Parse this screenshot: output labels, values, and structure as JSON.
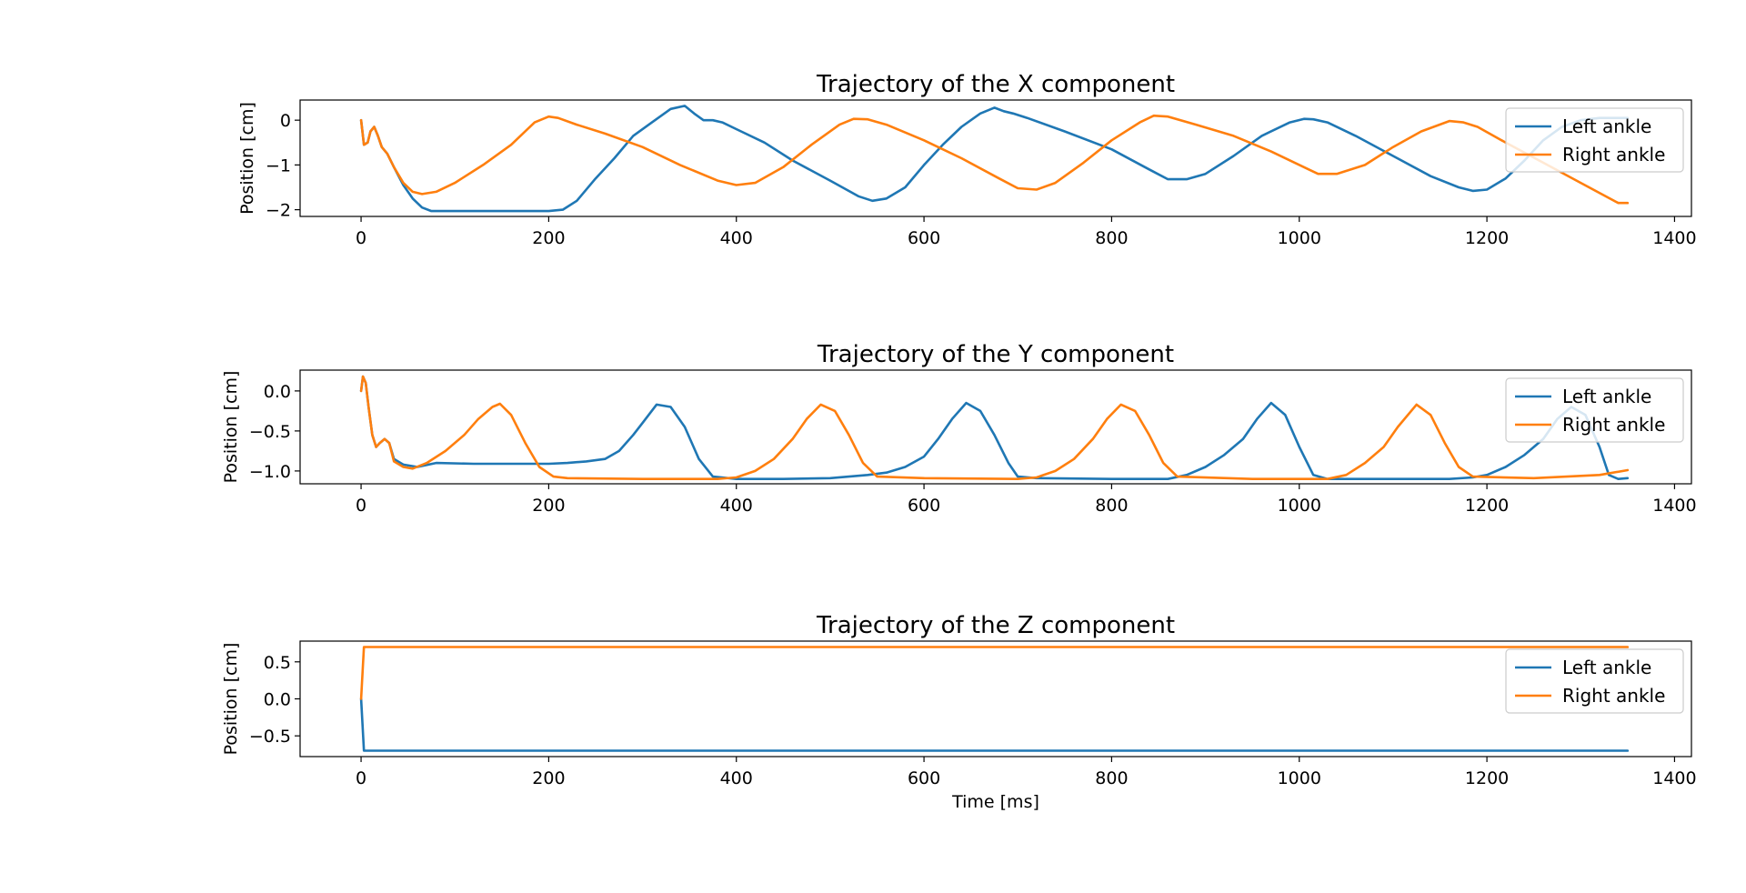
{
  "chart_data": [
    {
      "type": "line",
      "title": "Trajectory of the X component",
      "xlabel": "",
      "ylabel": "Position [cm]",
      "xlim": [
        -65,
        1418
      ],
      "ylim": [
        -2.15,
        0.45
      ],
      "xticks": [
        0,
        200,
        400,
        600,
        800,
        1000,
        1200,
        1400
      ],
      "yticks": [
        0,
        -1,
        -2
      ],
      "legend_position": "top-right",
      "series": [
        {
          "name": "Left ankle",
          "color": "#1f77b4",
          "x": [
            0,
            3,
            7,
            10,
            14,
            18,
            22,
            28,
            35,
            45,
            55,
            65,
            75,
            100,
            150,
            200,
            215,
            230,
            250,
            270,
            290,
            310,
            330,
            345,
            355,
            365,
            375,
            385,
            400,
            430,
            460,
            500,
            530,
            545,
            560,
            580,
            600,
            620,
            640,
            660,
            675,
            685,
            695,
            710,
            750,
            800,
            840,
            860,
            880,
            900,
            930,
            960,
            990,
            1005,
            1015,
            1030,
            1060,
            1100,
            1140,
            1170,
            1185,
            1200,
            1220,
            1240,
            1260,
            1280,
            1300,
            1320,
            1340,
            1350
          ],
          "y": [
            0,
            -0.55,
            -0.5,
            -0.25,
            -0.15,
            -0.35,
            -0.6,
            -0.75,
            -1.05,
            -1.45,
            -1.75,
            -1.95,
            -2.03,
            -2.03,
            -2.03,
            -2.03,
            -2.0,
            -1.8,
            -1.3,
            -0.85,
            -0.35,
            -0.05,
            0.25,
            0.32,
            0.15,
            0.0,
            0.0,
            -0.05,
            -0.2,
            -0.5,
            -0.9,
            -1.35,
            -1.7,
            -1.8,
            -1.75,
            -1.5,
            -1.0,
            -0.55,
            -0.15,
            0.15,
            0.28,
            0.2,
            0.15,
            0.05,
            -0.25,
            -0.65,
            -1.1,
            -1.32,
            -1.32,
            -1.2,
            -0.8,
            -0.35,
            -0.05,
            0.03,
            0.02,
            -0.05,
            -0.35,
            -0.8,
            -1.25,
            -1.5,
            -1.58,
            -1.55,
            -1.3,
            -0.9,
            -0.45,
            -0.15,
            0.0,
            0.05,
            0.05,
            0.05
          ]
        },
        {
          "name": "Right ankle",
          "color": "#ff7f0e",
          "x": [
            0,
            3,
            7,
            10,
            14,
            18,
            22,
            28,
            35,
            45,
            55,
            65,
            80,
            100,
            130,
            160,
            185,
            200,
            210,
            230,
            260,
            300,
            340,
            380,
            400,
            420,
            450,
            480,
            510,
            525,
            540,
            560,
            600,
            640,
            680,
            700,
            720,
            740,
            770,
            800,
            830,
            845,
            860,
            890,
            930,
            970,
            1010,
            1020,
            1040,
            1070,
            1100,
            1130,
            1160,
            1175,
            1190,
            1220,
            1260,
            1300,
            1340,
            1350
          ],
          "y": [
            0,
            -0.55,
            -0.5,
            -0.25,
            -0.15,
            -0.35,
            -0.6,
            -0.75,
            -1.05,
            -1.4,
            -1.6,
            -1.65,
            -1.6,
            -1.4,
            -1.0,
            -0.55,
            -0.05,
            0.08,
            0.05,
            -0.1,
            -0.3,
            -0.6,
            -1.0,
            -1.35,
            -1.45,
            -1.4,
            -1.05,
            -0.55,
            -0.1,
            0.03,
            0.02,
            -0.1,
            -0.45,
            -0.85,
            -1.3,
            -1.52,
            -1.55,
            -1.4,
            -0.95,
            -0.45,
            -0.05,
            0.1,
            0.08,
            -0.1,
            -0.35,
            -0.7,
            -1.1,
            -1.2,
            -1.2,
            -1.0,
            -0.6,
            -0.25,
            -0.02,
            -0.05,
            -0.15,
            -0.5,
            -0.95,
            -1.4,
            -1.85,
            -1.85
          ]
        }
      ]
    },
    {
      "type": "line",
      "title": "Trajectory of the Y component",
      "xlabel": "",
      "ylabel": "Position [cm]",
      "xlim": [
        -65,
        1418
      ],
      "ylim": [
        -1.16,
        0.26
      ],
      "xticks": [
        0,
        200,
        400,
        600,
        800,
        1000,
        1200,
        1400
      ],
      "yticks": [
        0.0,
        -0.5,
        -1.0
      ],
      "tick_label_format": "fixed1",
      "legend_position": "top-right",
      "series": [
        {
          "name": "Left ankle",
          "color": "#1f77b4",
          "x": [
            0,
            2,
            5,
            8,
            12,
            16,
            20,
            25,
            30,
            35,
            45,
            60,
            80,
            120,
            160,
            200,
            220,
            240,
            260,
            275,
            290,
            300,
            315,
            330,
            345,
            360,
            375,
            400,
            450,
            500,
            540,
            560,
            580,
            600,
            615,
            630,
            645,
            660,
            675,
            690,
            700,
            720,
            800,
            860,
            880,
            900,
            920,
            940,
            955,
            970,
            985,
            1000,
            1015,
            1030,
            1100,
            1160,
            1185,
            1200,
            1220,
            1240,
            1260,
            1275,
            1290,
            1305,
            1320,
            1330,
            1340,
            1350
          ],
          "y": [
            0,
            0.18,
            0.1,
            -0.2,
            -0.55,
            -0.7,
            -0.65,
            -0.6,
            -0.65,
            -0.85,
            -0.92,
            -0.95,
            -0.9,
            -0.91,
            -0.91,
            -0.91,
            -0.9,
            -0.88,
            -0.85,
            -0.75,
            -0.55,
            -0.4,
            -0.17,
            -0.2,
            -0.45,
            -0.85,
            -1.07,
            -1.1,
            -1.1,
            -1.09,
            -1.05,
            -1.02,
            -0.95,
            -0.82,
            -0.6,
            -0.35,
            -0.15,
            -0.25,
            -0.55,
            -0.9,
            -1.07,
            -1.09,
            -1.1,
            -1.1,
            -1.05,
            -0.95,
            -0.8,
            -0.6,
            -0.35,
            -0.15,
            -0.3,
            -0.7,
            -1.05,
            -1.1,
            -1.1,
            -1.1,
            -1.08,
            -1.05,
            -0.95,
            -0.8,
            -0.6,
            -0.35,
            -0.2,
            -0.3,
            -0.7,
            -1.05,
            -1.1,
            -1.09
          ]
        },
        {
          "name": "Right ankle",
          "color": "#ff7f0e",
          "x": [
            0,
            2,
            5,
            8,
            12,
            16,
            20,
            25,
            30,
            35,
            45,
            55,
            70,
            90,
            110,
            125,
            140,
            148,
            160,
            175,
            190,
            205,
            220,
            300,
            380,
            400,
            420,
            440,
            460,
            475,
            490,
            505,
            520,
            535,
            550,
            600,
            700,
            720,
            740,
            760,
            780,
            795,
            810,
            825,
            840,
            855,
            870,
            950,
            1030,
            1050,
            1070,
            1090,
            1105,
            1125,
            1140,
            1155,
            1170,
            1185,
            1250,
            1320,
            1350
          ],
          "y": [
            0,
            0.18,
            0.1,
            -0.2,
            -0.55,
            -0.7,
            -0.65,
            -0.6,
            -0.65,
            -0.88,
            -0.95,
            -0.97,
            -0.9,
            -0.75,
            -0.55,
            -0.35,
            -0.2,
            -0.16,
            -0.3,
            -0.65,
            -0.95,
            -1.07,
            -1.09,
            -1.1,
            -1.1,
            -1.08,
            -1.0,
            -0.85,
            -0.6,
            -0.35,
            -0.17,
            -0.25,
            -0.55,
            -0.9,
            -1.07,
            -1.09,
            -1.1,
            -1.08,
            -1.0,
            -0.85,
            -0.6,
            -0.35,
            -0.17,
            -0.25,
            -0.55,
            -0.9,
            -1.07,
            -1.1,
            -1.1,
            -1.05,
            -0.9,
            -0.7,
            -0.45,
            -0.17,
            -0.3,
            -0.65,
            -0.95,
            -1.07,
            -1.09,
            -1.05,
            -0.99
          ]
        }
      ]
    },
    {
      "type": "line",
      "title": "Trajectory of the Z component",
      "xlabel": "Time [ms]",
      "ylabel": "Position [cm]",
      "xlim": [
        -65,
        1418
      ],
      "ylim": [
        -0.78,
        0.78
      ],
      "xticks": [
        0,
        200,
        400,
        600,
        800,
        1000,
        1200,
        1400
      ],
      "yticks": [
        0.5,
        0.0,
        -0.5
      ],
      "tick_label_format": "fixed1",
      "legend_position": "top-right",
      "series": [
        {
          "name": "Left ankle",
          "color": "#1f77b4",
          "x": [
            0,
            3,
            6,
            1350
          ],
          "y": [
            0,
            -0.7,
            -0.7,
            -0.7
          ]
        },
        {
          "name": "Right ankle",
          "color": "#ff7f0e",
          "x": [
            0,
            3,
            6,
            1350
          ],
          "y": [
            0,
            0.7,
            0.7,
            0.7
          ]
        }
      ]
    }
  ]
}
